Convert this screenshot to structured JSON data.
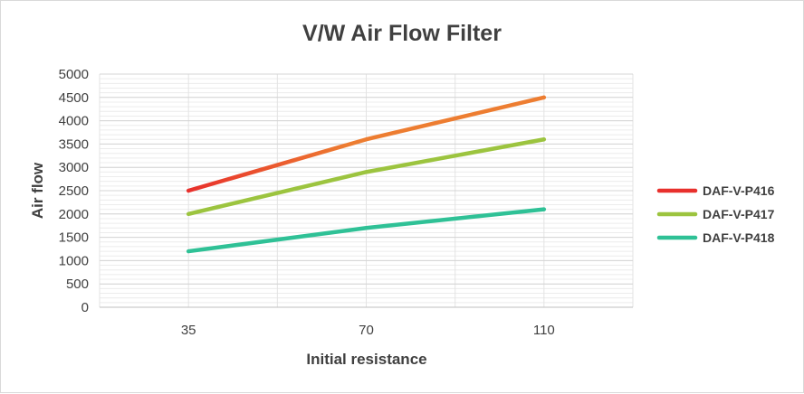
{
  "chart_data": {
    "type": "line",
    "title": "V/W  Air Flow Filter",
    "xlabel": "Initial resistance",
    "ylabel": "Air flow",
    "categories": [
      "35",
      "70",
      "110"
    ],
    "ylim": [
      0,
      5000
    ],
    "ytick_step": 500,
    "yticks": [
      "0",
      "500",
      "1000",
      "1500",
      "2000",
      "2500",
      "3000",
      "3500",
      "4000",
      "4500",
      "5000"
    ],
    "grid": true,
    "legend_position": "right",
    "series": [
      {
        "name": "DAF-V-P416",
        "values": [
          2500,
          3600,
          4500
        ],
        "color": "#ed7d31",
        "color_start": "#e8302c"
      },
      {
        "name": "DAF-V-P417",
        "values": [
          2000,
          2900,
          3600
        ],
        "color": "#9cc43f"
      },
      {
        "name": "DAF-V-P418",
        "values": [
          1200,
          1700,
          2100
        ],
        "color": "#2fc196"
      }
    ]
  }
}
